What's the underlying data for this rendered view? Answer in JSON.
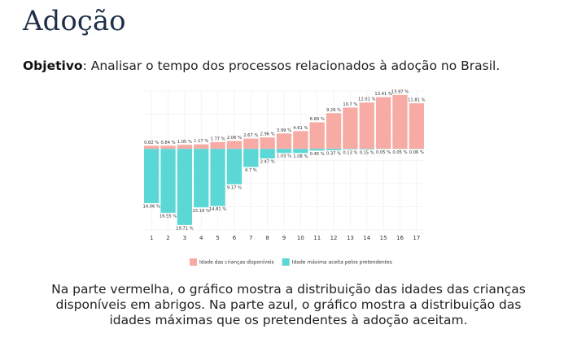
{
  "header": {
    "title": "Adoção",
    "objective_label": "Objetivo",
    "objective_text": ": Analisar o tempo dos processos relacionados à adoção no Brasil."
  },
  "caption": [
    "Na parte vermelha, o gráfico mostra a distribuição das idades das crianças",
    "disponíveis em abrigos. Na parte azul, o gráfico mostra a distribuição das",
    "idades máximas que os pretendentes à adoção aceitam."
  ],
  "chart_data": {
    "type": "bar",
    "categories": [
      "1",
      "2",
      "3",
      "4",
      "5",
      "6",
      "7",
      "8",
      "9",
      "10",
      "11",
      "12",
      "13",
      "14",
      "15",
      "16",
      "17"
    ],
    "ylim": [
      -21,
      15
    ],
    "grid": true,
    "series": [
      {
        "name": "Idade das crianças disponíveis",
        "color": "#f8aaa4",
        "direction": "up",
        "values": [
          0.82,
          0.84,
          1.05,
          1.17,
          1.77,
          2.06,
          2.67,
          2.96,
          3.99,
          4.61,
          6.89,
          9.26,
          10.7,
          12.01,
          13.41,
          13.97,
          11.81
        ],
        "value_labels": [
          "0.82 %",
          "0.84 %",
          "1.05 %",
          "1.17 %",
          "1.77 %",
          "2.06 %",
          "2.67 %",
          "2.96 %",
          "3.99 %",
          "4.61 %",
          "6.89 %",
          "9.26 %",
          "10.7 %",
          "12.01 %",
          "13.41 %",
          "13.97 %",
          "11.81 %"
        ]
      },
      {
        "name": "Idade máxima aceita pelos pretendentes",
        "color": "#5bd8d6",
        "direction": "down",
        "values": [
          14.06,
          16.55,
          19.71,
          15.16,
          14.81,
          9.17,
          4.7,
          2.47,
          1.03,
          1.08,
          0.45,
          0.37,
          0.13,
          0.15,
          0.05,
          0.05,
          0.06
        ],
        "value_labels": [
          "14.06 %",
          "16.55 %",
          "19.71 %",
          "15.16 %",
          "14.81 %",
          "9.17 %",
          "4.7 %",
          "2.47 %",
          "1.03 %",
          "1.08 %",
          "0.45 %",
          "0.37 %",
          "0.13 %",
          "0.15 %",
          "0.05 %",
          "0.05 %",
          "0.06 %"
        ]
      }
    ]
  }
}
